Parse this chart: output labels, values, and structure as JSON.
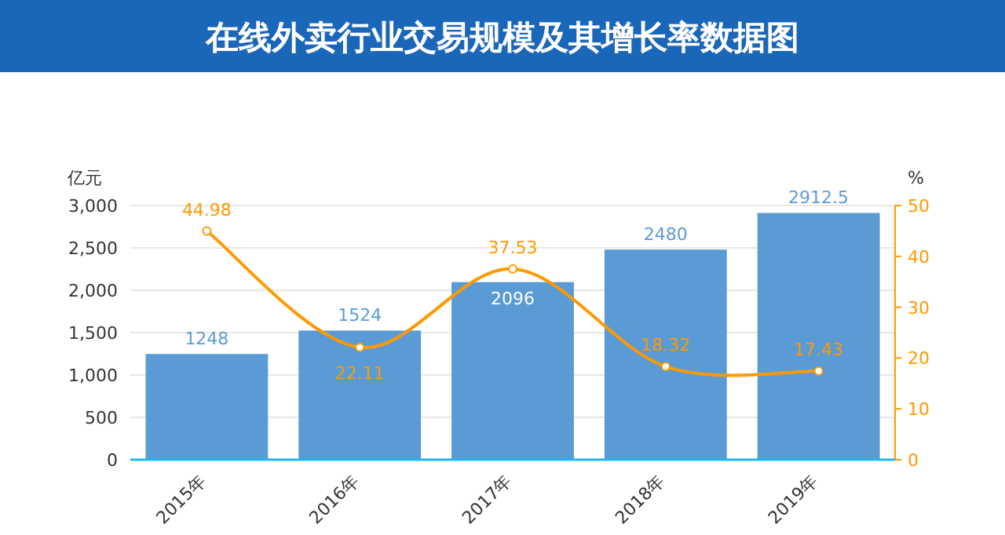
{
  "chart_data": {
    "type": "bar",
    "title": "在线外卖行业交易规模及其增长率数据图",
    "ylabel": "亿元",
    "y2label": "%",
    "categories": [
      "2015年",
      "2016年",
      "2017年",
      "2018年",
      "2019年"
    ],
    "series": [
      {
        "color": "#5b9bd5",
        "values": [
          1248,
          1524,
          2096,
          2480,
          2912.5
        ]
      },
      {
        "type": "line",
        "axis": "y2",
        "color": "#ff9900",
        "values": [
          44.98,
          22.11,
          37.53,
          18.32,
          17.43
        ]
      }
    ],
    "ylim": [
      0,
      3000
    ],
    "yticks": [
      0,
      500,
      {
        "value": 1000,
        "label": "1,000"
      },
      {
        "value": 1500,
        "label": "1,500"
      },
      {
        "value": 2000,
        "label": "2,000"
      },
      {
        "value": 2500,
        "label": "2,500"
      },
      {
        "value": 3000,
        "label": "3,000"
      }
    ],
    "y2lim": [
      0,
      50
    ],
    "y2ticks": [
      0,
      10,
      20,
      30,
      40,
      50
    ],
    "data_labels": true,
    "grid": "y",
    "marker": "circle",
    "line_style": "solid"
  }
}
